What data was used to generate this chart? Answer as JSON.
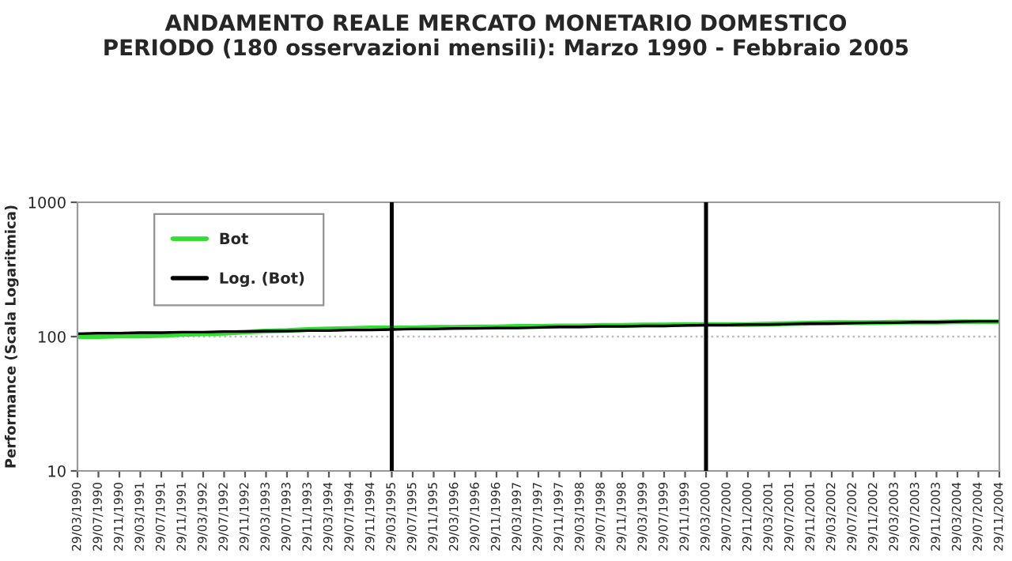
{
  "chart_data": {
    "type": "line",
    "title": "ANDAMENTO REALE MERCATO MONETARIO DOMESTICO\nPERIODO (180 osservazioni mensili): Marzo 1990 - Febbraio 2005",
    "ylabel": "Performance (Scala Logaritmica)",
    "categories": [
      "29/03/1990",
      "29/07/1990",
      "29/11/1990",
      "29/03/1991",
      "29/07/1991",
      "29/11/1991",
      "29/03/1992",
      "29/07/1992",
      "29/11/1992",
      "29/03/1993",
      "29/07/1993",
      "29/11/1993",
      "29/03/1994",
      "29/07/1994",
      "29/11/1994",
      "29/03/1995",
      "29/07/1995",
      "29/11/1995",
      "29/03/1996",
      "29/07/1996",
      "29/11/1996",
      "29/03/1997",
      "29/07/1997",
      "29/11/1997",
      "29/03/1998",
      "29/07/1998",
      "29/11/1998",
      "29/03/1999",
      "29/07/1999",
      "29/11/1999",
      "29/03/2000",
      "29/07/2000",
      "29/11/2000",
      "29/03/2001",
      "29/07/2001",
      "29/11/2001",
      "29/03/2002",
      "29/07/2002",
      "29/11/2002",
      "29/03/2003",
      "29/07/2003",
      "29/11/2003",
      "29/03/2004",
      "29/07/2004",
      "29/11/2004"
    ],
    "series": [
      {
        "name": "Bot",
        "color": "#33dd33",
        "values": [
          100,
          100,
          101,
          101,
          102,
          104,
          105,
          106,
          108,
          110,
          111,
          113,
          114,
          115,
          116,
          116,
          116,
          117,
          117,
          118,
          118,
          119,
          119,
          120,
          120,
          121,
          121,
          122,
          122,
          123,
          123,
          123,
          123,
          124,
          125,
          126,
          127,
          127,
          127,
          128,
          128,
          128,
          129,
          129,
          129
        ]
      },
      {
        "name": "Log. (Bot)",
        "color": "#000000",
        "values": [
          105,
          106,
          106,
          107,
          107,
          108,
          108,
          109,
          109,
          110,
          110,
          111,
          111,
          112,
          112,
          113,
          114,
          114,
          115,
          115,
          116,
          116,
          117,
          118,
          118,
          119,
          119,
          120,
          120,
          121,
          122,
          122,
          123,
          123,
          124,
          125,
          125,
          126,
          127,
          127,
          128,
          128,
          129,
          130,
          130
        ]
      }
    ],
    "log": "y",
    "ylim": [
      10,
      1000
    ],
    "yticks": [
      10,
      100,
      1000
    ],
    "ref_lines": [
      {
        "axis": "y",
        "value": 100,
        "color": "#bbbbbb",
        "line_style": "dotted"
      },
      {
        "axis": "x",
        "value": "29/03/1995",
        "color": "#000000",
        "line_style": "solid"
      },
      {
        "axis": "x",
        "value": "29/03/2000",
        "color": "#000000",
        "line_style": "solid"
      }
    ],
    "legend": "top left",
    "grid": false,
    "marker": "none",
    "line_style": "solid"
  }
}
